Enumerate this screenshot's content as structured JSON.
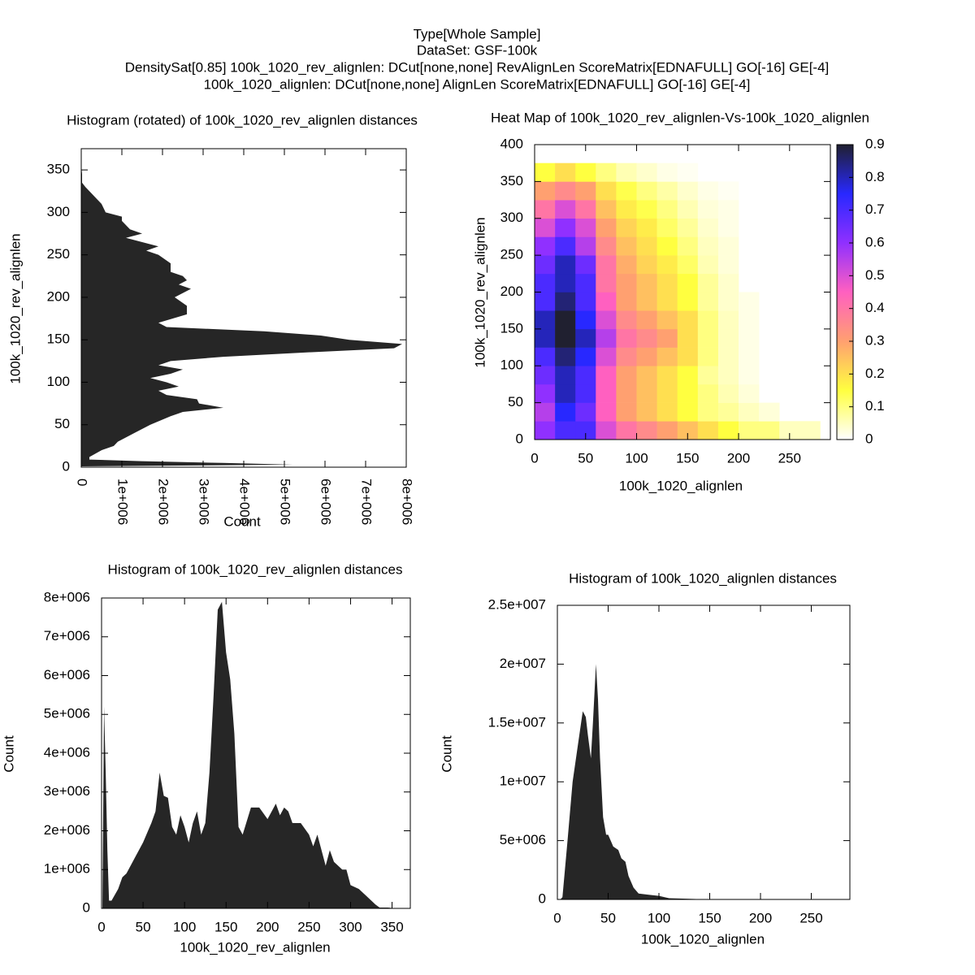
{
  "title_block": [
    "Type[Whole Sample]",
    "DataSet: GSF-100k",
    "DensitySat[0.85] 100k_1020_rev_alignlen: DCut[none,none] RevAlignLen ScoreMatrix[EDNAFULL] GO[-16] GE[-4]",
    "100k_1020_alignlen: DCut[none,none] AlignLen ScoreMatrix[EDNAFULL] GO[-16] GE[-4]"
  ],
  "chart_data": [
    {
      "type": "area",
      "orientation": "horizontal",
      "title": "Histogram (rotated) of 100k_1020_rev_alignlen distances",
      "xlabel": "Count",
      "ylabel": "100k_1020_rev_alignlen",
      "color": "#262626",
      "y": [
        1,
        3,
        5,
        7,
        9,
        12,
        20,
        25,
        30,
        40,
        50,
        60,
        65,
        70,
        75,
        80,
        85,
        90,
        95,
        100,
        105,
        110,
        115,
        120,
        125,
        130,
        135,
        140,
        145,
        150,
        155,
        160,
        165,
        170,
        180,
        185,
        190,
        200,
        210,
        215,
        220,
        225,
        230,
        240,
        250,
        255,
        260,
        270,
        275,
        280,
        290,
        295,
        300,
        310,
        320,
        330,
        335,
        345,
        355
      ],
      "values": [
        0,
        5200000,
        3500000,
        1500000,
        200000,
        200000,
        500000,
        800000,
        900000,
        1300000,
        1700000,
        2200000,
        2500000,
        3500000,
        2900000,
        2850000,
        2100000,
        1900000,
        2400000,
        2100000,
        1700000,
        2200000,
        2500000,
        1900000,
        2200000,
        3500000,
        5500000,
        7700000,
        7900000,
        6600000,
        5900000,
        4500000,
        2100000,
        1900000,
        2600000,
        2600000,
        2600000,
        2300000,
        2700000,
        2400000,
        2600000,
        2500000,
        2200000,
        2200000,
        1900000,
        1600000,
        1900000,
        1100000,
        1500000,
        1200000,
        1000000,
        1000000,
        600000,
        500000,
        300000,
        100000,
        20000,
        20000,
        0
      ],
      "xlim": [
        0,
        8000000
      ],
      "xticks": [
        0,
        {
          "value": 1000000,
          "label": "1e+006"
        },
        {
          "value": 2000000,
          "label": "2e+006"
        },
        {
          "value": 3000000,
          "label": "3e+006"
        },
        {
          "value": 4000000,
          "label": "4e+006"
        },
        {
          "value": 5000000,
          "label": "5e+006"
        },
        {
          "value": 6000000,
          "label": "6e+006"
        },
        {
          "value": 7000000,
          "label": "7e+006"
        },
        {
          "value": 8000000,
          "label": "8e+006"
        }
      ],
      "ylim": [
        0,
        375
      ],
      "yticks": [
        0,
        50,
        100,
        150,
        200,
        250,
        300,
        350
      ]
    },
    {
      "type": "heatmap",
      "title": "Heat Map of 100k_1020_rev_alignlen-Vs-100k_1020_alignlen",
      "xlabel": "100k_1020_alignlen",
      "ylabel": "100k_1020_rev_alignlen",
      "xbins": [
        0,
        20,
        40,
        60,
        80,
        100,
        120,
        140,
        160,
        180,
        200,
        220,
        240,
        260,
        280
      ],
      "ybins": [
        0,
        25,
        50,
        75,
        100,
        125,
        150,
        175,
        200,
        225,
        250,
        275,
        300,
        325,
        350,
        375
      ],
      "z": [
        [
          0.6,
          0.7,
          0.7,
          0.5,
          0.4,
          0.35,
          0.3,
          0.25,
          0.2,
          0.15,
          0.1,
          0.1,
          0.05,
          0.05
        ],
        [
          0.55,
          0.75,
          0.65,
          0.45,
          0.3,
          0.25,
          0.2,
          0.15,
          0.1,
          0.08,
          0.05,
          0.03,
          null,
          null
        ],
        [
          0.6,
          0.8,
          0.7,
          0.45,
          0.3,
          0.25,
          0.2,
          0.15,
          0.1,
          0.06,
          0.03,
          null,
          null,
          null
        ],
        [
          0.65,
          0.8,
          0.7,
          0.45,
          0.3,
          0.25,
          0.2,
          0.15,
          0.08,
          0.05,
          0.02,
          null,
          null,
          null
        ],
        [
          0.7,
          0.85,
          0.75,
          0.5,
          0.35,
          0.3,
          0.25,
          0.2,
          0.1,
          0.05,
          0.02,
          null,
          null,
          null
        ],
        [
          0.8,
          0.9,
          0.8,
          0.55,
          0.4,
          0.35,
          0.3,
          0.2,
          0.1,
          0.05,
          0.02,
          null,
          null,
          null
        ],
        [
          0.8,
          0.9,
          0.75,
          0.5,
          0.35,
          0.3,
          0.25,
          0.2,
          0.1,
          0.05,
          0.02,
          null,
          null,
          null
        ],
        [
          0.7,
          0.85,
          0.7,
          0.45,
          0.3,
          0.25,
          0.2,
          0.15,
          0.08,
          0.04,
          0.02,
          null,
          null,
          null
        ],
        [
          0.7,
          0.8,
          0.7,
          0.4,
          0.3,
          0.25,
          0.2,
          0.15,
          0.08,
          0.04,
          null,
          null,
          null,
          null
        ],
        [
          0.65,
          0.8,
          0.65,
          0.4,
          0.28,
          0.22,
          0.18,
          0.12,
          0.06,
          0.03,
          null,
          null,
          null,
          null
        ],
        [
          0.6,
          0.7,
          0.55,
          0.35,
          0.25,
          0.2,
          0.15,
          0.1,
          0.05,
          0.03,
          null,
          null,
          null,
          null
        ],
        [
          0.5,
          0.6,
          0.5,
          0.3,
          0.22,
          0.18,
          0.12,
          0.08,
          0.04,
          0.02,
          null,
          null,
          null,
          null
        ],
        [
          0.4,
          0.5,
          0.4,
          0.25,
          0.18,
          0.14,
          0.1,
          0.06,
          0.03,
          0.02,
          null,
          null,
          null,
          null
        ],
        [
          0.3,
          0.35,
          0.3,
          0.2,
          0.14,
          0.1,
          0.07,
          0.04,
          0.02,
          0.01,
          null,
          null,
          null,
          null
        ],
        [
          0.15,
          0.2,
          0.15,
          0.1,
          0.06,
          0.04,
          0.02,
          0.01,
          null,
          null,
          null,
          null,
          null,
          null
        ]
      ],
      "palette": [
        "#ffffff",
        "#ffff40",
        "#ffa070",
        "#ff60c0",
        "#9030ff",
        "#2828ff",
        "#202030"
      ],
      "xlim": [
        0,
        290
      ],
      "xticks": [
        0,
        50,
        100,
        150,
        200,
        250
      ],
      "ylim": [
        0,
        400
      ],
      "yticks": [
        0,
        50,
        100,
        150,
        200,
        250,
        300,
        350,
        400
      ],
      "clim": [
        0,
        0.9
      ],
      "cticks": [
        0,
        0.1,
        0.2,
        0.3,
        0.4,
        0.5,
        0.6,
        0.7,
        0.8,
        0.9
      ]
    },
    {
      "type": "area",
      "orientation": "vertical",
      "title": "Histogram of 100k_1020_rev_alignlen distances",
      "xlabel": "100k_1020_rev_alignlen",
      "ylabel": "Count",
      "color": "#262626",
      "x": [
        1,
        3,
        5,
        7,
        9,
        12,
        20,
        25,
        30,
        40,
        50,
        60,
        65,
        70,
        75,
        80,
        85,
        90,
        95,
        100,
        105,
        110,
        115,
        120,
        125,
        130,
        135,
        140,
        145,
        150,
        155,
        160,
        165,
        170,
        180,
        185,
        190,
        200,
        210,
        215,
        220,
        225,
        230,
        240,
        250,
        255,
        260,
        270,
        275,
        280,
        290,
        295,
        300,
        310,
        320,
        330,
        335,
        345,
        355
      ],
      "values": [
        0,
        5200000,
        3500000,
        1500000,
        200000,
        200000,
        500000,
        800000,
        900000,
        1300000,
        1700000,
        2200000,
        2500000,
        3500000,
        2900000,
        2850000,
        2100000,
        1900000,
        2400000,
        2100000,
        1700000,
        2200000,
        2500000,
        1900000,
        2200000,
        3500000,
        5500000,
        7700000,
        7900000,
        6600000,
        5900000,
        4500000,
        2100000,
        1900000,
        2600000,
        2600000,
        2600000,
        2300000,
        2700000,
        2400000,
        2600000,
        2500000,
        2200000,
        2200000,
        1900000,
        1600000,
        1900000,
        1100000,
        1500000,
        1200000,
        1000000,
        1000000,
        600000,
        500000,
        300000,
        100000,
        20000,
        20000,
        0
      ],
      "xlim": [
        0,
        372
      ],
      "xticks": [
        0,
        50,
        100,
        150,
        200,
        250,
        300,
        350
      ],
      "ylim": [
        0,
        8000000
      ],
      "yticks": [
        0,
        {
          "value": 1000000,
          "label": "1e+006"
        },
        {
          "value": 2000000,
          "label": "2e+006"
        },
        {
          "value": 3000000,
          "label": "3e+006"
        },
        {
          "value": 4000000,
          "label": "4e+006"
        },
        {
          "value": 5000000,
          "label": "5e+006"
        },
        {
          "value": 6000000,
          "label": "6e+006"
        },
        {
          "value": 7000000,
          "label": "7e+006"
        },
        {
          "value": 8000000,
          "label": "8e+006"
        }
      ]
    },
    {
      "type": "area",
      "orientation": "vertical",
      "title": "Histogram of 100k_1020_alignlen distances",
      "xlabel": "100k_1020_alignlen",
      "ylabel": "Count",
      "color": "#262626",
      "x": [
        3,
        5,
        10,
        15,
        20,
        25,
        28,
        30,
        33,
        35,
        38,
        40,
        42,
        45,
        48,
        50,
        55,
        60,
        63,
        67,
        70,
        75,
        80,
        90,
        100,
        110,
        130,
        150
      ],
      "values": [
        0,
        200000,
        5000000,
        10000000,
        13000000,
        16000000,
        15500000,
        14000000,
        12000000,
        15000000,
        20000000,
        17000000,
        12000000,
        7000000,
        5500000,
        5500000,
        4500000,
        4200000,
        3500000,
        3200000,
        2000000,
        1000000,
        500000,
        400000,
        300000,
        100000,
        50000,
        0
      ],
      "xlim": [
        0,
        288
      ],
      "xticks": [
        0,
        50,
        100,
        150,
        200,
        250
      ],
      "ylim": [
        0,
        25000000
      ],
      "yticks": [
        0,
        {
          "value": 5000000,
          "label": "5e+006"
        },
        {
          "value": 10000000,
          "label": "1e+007"
        },
        {
          "value": 15000000,
          "label": "1.5e+007"
        },
        {
          "value": 20000000,
          "label": "2e+007"
        },
        {
          "value": 25000000,
          "label": "2.5e+007"
        }
      ]
    }
  ]
}
